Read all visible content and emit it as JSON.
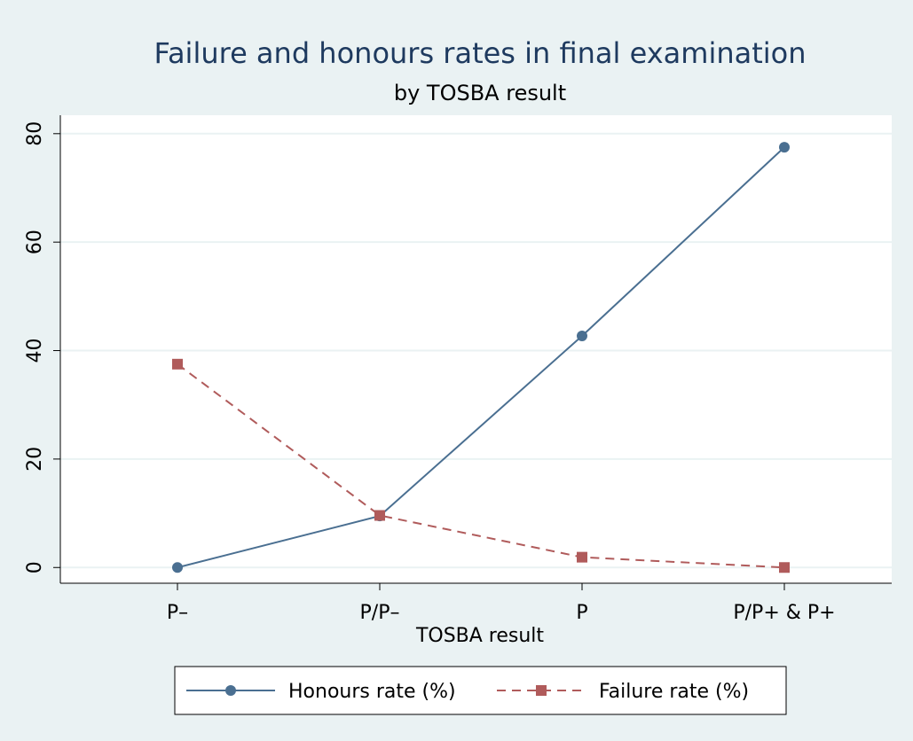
{
  "chart_data": {
    "type": "line",
    "title": "Failure and honours rates in final examination",
    "subtitle": "by TOSBA result",
    "x_label": "TOSBA result",
    "categories": [
      "P–",
      "P/P–",
      "P",
      "P/P+ & P+"
    ],
    "series": [
      {
        "name": "Honours rate (%)",
        "color": "#4a6f91",
        "dash": "solid",
        "marker": "circle",
        "values": [
          0,
          9.5,
          42.7,
          77.5
        ]
      },
      {
        "name": "Failure rate (%)",
        "color": "#b05b5b",
        "dash": "dashed",
        "marker": "square",
        "values": [
          37.5,
          9.6,
          1.9,
          0
        ]
      }
    ],
    "ylim": [
      -2.9,
      83.4
    ],
    "yticks": [
      0,
      20,
      40,
      60,
      80
    ],
    "grid": true,
    "legend": "bottom"
  }
}
